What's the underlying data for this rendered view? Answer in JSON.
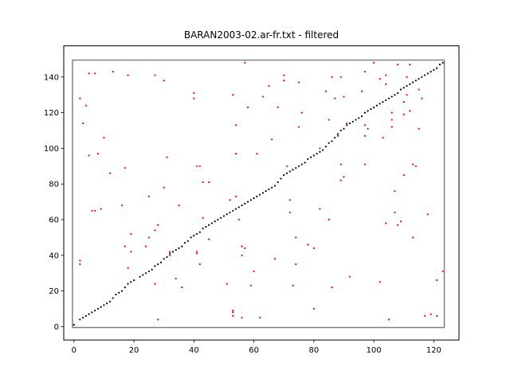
{
  "chart_data": {
    "type": "scatter",
    "title": "BARAN2003-02.ar-fr.txt - filtered",
    "xlabel": "",
    "ylabel": "",
    "xlim": [
      -3.4,
      128.4
    ],
    "ylim": [
      -7.5,
      157.5
    ],
    "x_ticks": [
      0,
      20,
      40,
      60,
      80,
      100,
      120
    ],
    "y_ticks": [
      0,
      20,
      40,
      60,
      80,
      100,
      120,
      140
    ],
    "grid": false,
    "box": {
      "x0": -0.5,
      "y0": -0.5,
      "x1": 123.5,
      "y1": 149.5,
      "color": "#808080"
    },
    "series": [
      {
        "color": "#ff0000",
        "points": [
          [
            2,
            128
          ],
          [
            3,
            114
          ],
          [
            4,
            124
          ],
          [
            5,
            142
          ],
          [
            7,
            142
          ],
          [
            6,
            65
          ],
          [
            7,
            65
          ],
          [
            9,
            66
          ],
          [
            10,
            106
          ],
          [
            8,
            97
          ],
          [
            5,
            96
          ],
          [
            2,
            37
          ],
          [
            2,
            35
          ],
          [
            13,
            143
          ],
          [
            12,
            86
          ],
          [
            18,
            141
          ],
          [
            16,
            68
          ],
          [
            17,
            89
          ],
          [
            17,
            45
          ],
          [
            19,
            52
          ],
          [
            19,
            42
          ],
          [
            18,
            33
          ],
          [
            25,
            73
          ],
          [
            24,
            45
          ],
          [
            25,
            50
          ],
          [
            27,
            141
          ],
          [
            28,
            57
          ],
          [
            27,
            54
          ],
          [
            30,
            138
          ],
          [
            30,
            78
          ],
          [
            31,
            95
          ],
          [
            32,
            42
          ],
          [
            32,
            40
          ],
          [
            34,
            27
          ],
          [
            35,
            68
          ],
          [
            36,
            22
          ],
          [
            40,
            131
          ],
          [
            40,
            128
          ],
          [
            41,
            90
          ],
          [
            41,
            41
          ],
          [
            41,
            42
          ],
          [
            42,
            35
          ],
          [
            42,
            90
          ],
          [
            43,
            81
          ],
          [
            45,
            81
          ],
          [
            43,
            61
          ],
          [
            45,
            49
          ],
          [
            27,
            24
          ],
          [
            28,
            4
          ],
          [
            52,
            71
          ],
          [
            53,
            130
          ],
          [
            54,
            113
          ],
          [
            54,
            97
          ],
          [
            54,
            73
          ],
          [
            55,
            60
          ],
          [
            57,
            148
          ],
          [
            58,
            123
          ],
          [
            56,
            45
          ],
          [
            57,
            44
          ],
          [
            56,
            40
          ],
          [
            59,
            23
          ],
          [
            61,
            97
          ],
          [
            60,
            31
          ],
          [
            62,
            5
          ],
          [
            51,
            24
          ],
          [
            53,
            9
          ],
          [
            53,
            8
          ],
          [
            53,
            6
          ],
          [
            56,
            5
          ],
          [
            63,
            129
          ],
          [
            65,
            135
          ],
          [
            66,
            105
          ],
          [
            67,
            38
          ],
          [
            68,
            123
          ],
          [
            70,
            141
          ],
          [
            70,
            138
          ],
          [
            71,
            90
          ],
          [
            72,
            71
          ],
          [
            72,
            64
          ],
          [
            73,
            23
          ],
          [
            74,
            35
          ],
          [
            74,
            50
          ],
          [
            75,
            137
          ],
          [
            76,
            120
          ],
          [
            75,
            112
          ],
          [
            78,
            46
          ],
          [
            80,
            44
          ],
          [
            80,
            10
          ],
          [
            82,
            100
          ],
          [
            82,
            66
          ],
          [
            84,
            132
          ],
          [
            85,
            116
          ],
          [
            86,
            140
          ],
          [
            87,
            128
          ],
          [
            85,
            60
          ],
          [
            86,
            22
          ],
          [
            88,
            107
          ],
          [
            89,
            140
          ],
          [
            90,
            129
          ],
          [
            89,
            91
          ],
          [
            90,
            84
          ],
          [
            89,
            82
          ],
          [
            91,
            114
          ],
          [
            92,
            28
          ],
          [
            96,
            132
          ],
          [
            97,
            143
          ],
          [
            98,
            111
          ],
          [
            97,
            113
          ],
          [
            97,
            107
          ],
          [
            97,
            91
          ],
          [
            100,
            148
          ],
          [
            102,
            139
          ],
          [
            104,
            136
          ],
          [
            104,
            141
          ],
          [
            103,
            106
          ],
          [
            102,
            25
          ],
          [
            104,
            58
          ],
          [
            105,
            4
          ],
          [
            106,
            120
          ],
          [
            106,
            116
          ],
          [
            106,
            112
          ],
          [
            107,
            76
          ],
          [
            107,
            64
          ],
          [
            108,
            147
          ],
          [
            109,
            59
          ],
          [
            108,
            57
          ],
          [
            110,
            126
          ],
          [
            110,
            119
          ],
          [
            110,
            85
          ],
          [
            112,
            121
          ],
          [
            111,
            140
          ],
          [
            111,
            130
          ],
          [
            112,
            147
          ],
          [
            113,
            91
          ],
          [
            114,
            90
          ],
          [
            113,
            50
          ],
          [
            115,
            133
          ],
          [
            115,
            111
          ],
          [
            116,
            128
          ],
          [
            117,
            6
          ],
          [
            118,
            63
          ],
          [
            119,
            7
          ],
          [
            121,
            26
          ],
          [
            121,
            6
          ],
          [
            122,
            147
          ],
          [
            123,
            31
          ]
        ]
      },
      {
        "color": "#000000",
        "points": [
          [
            0,
            1
          ],
          [
            2,
            4
          ],
          [
            3,
            5
          ],
          [
            4,
            6
          ],
          [
            5,
            7
          ],
          [
            6,
            8
          ],
          [
            7,
            9
          ],
          [
            8,
            10
          ],
          [
            9,
            11
          ],
          [
            10,
            12
          ],
          [
            11,
            13
          ],
          [
            12,
            14
          ],
          [
            13,
            16
          ],
          [
            14,
            18
          ],
          [
            15,
            19
          ],
          [
            16,
            20
          ],
          [
            17,
            22
          ],
          [
            18,
            24
          ],
          [
            19,
            25
          ],
          [
            20,
            26
          ],
          [
            22,
            28
          ],
          [
            23,
            29
          ],
          [
            24,
            30
          ],
          [
            25,
            31
          ],
          [
            26,
            32
          ],
          [
            27,
            34
          ],
          [
            28,
            35
          ],
          [
            29,
            36
          ],
          [
            30,
            38
          ],
          [
            31,
            39
          ],
          [
            32,
            41
          ],
          [
            33,
            42
          ],
          [
            34,
            43
          ],
          [
            35,
            44
          ],
          [
            36,
            45
          ],
          [
            37,
            47
          ],
          [
            38,
            48
          ],
          [
            39,
            50
          ],
          [
            40,
            51
          ],
          [
            41,
            52
          ],
          [
            42,
            53
          ],
          [
            43,
            55
          ],
          [
            44,
            56
          ],
          [
            45,
            57
          ],
          [
            46,
            58
          ],
          [
            47,
            59
          ],
          [
            48,
            60
          ],
          [
            49,
            61
          ],
          [
            50,
            62
          ],
          [
            51,
            63
          ],
          [
            52,
            64
          ],
          [
            53,
            65
          ],
          [
            54,
            66
          ],
          [
            55,
            67
          ],
          [
            56,
            68
          ],
          [
            57,
            69
          ],
          [
            58,
            70
          ],
          [
            59,
            71
          ],
          [
            60,
            72
          ],
          [
            61,
            73
          ],
          [
            62,
            74
          ],
          [
            63,
            75
          ],
          [
            64,
            76
          ],
          [
            65,
            77
          ],
          [
            66,
            78
          ],
          [
            67,
            79
          ],
          [
            68,
            81
          ],
          [
            69,
            83
          ],
          [
            70,
            85
          ],
          [
            71,
            86
          ],
          [
            72,
            87
          ],
          [
            73,
            88
          ],
          [
            74,
            89
          ],
          [
            75,
            90
          ],
          [
            76,
            91
          ],
          [
            77,
            92
          ],
          [
            78,
            94
          ],
          [
            79,
            95
          ],
          [
            80,
            96
          ],
          [
            81,
            97
          ],
          [
            82,
            98
          ],
          [
            83,
            99
          ],
          [
            84,
            101
          ],
          [
            85,
            103
          ],
          [
            86,
            104
          ],
          [
            87,
            106
          ],
          [
            88,
            108
          ],
          [
            89,
            110
          ],
          [
            90,
            111
          ],
          [
            91,
            113
          ],
          [
            92,
            114
          ],
          [
            93,
            115
          ],
          [
            94,
            116
          ],
          [
            95,
            117
          ],
          [
            96,
            118
          ],
          [
            97,
            120
          ],
          [
            98,
            121
          ],
          [
            99,
            122
          ],
          [
            100,
            123
          ],
          [
            101,
            124
          ],
          [
            102,
            125
          ],
          [
            103,
            126
          ],
          [
            104,
            127
          ],
          [
            105,
            128
          ],
          [
            106,
            129
          ],
          [
            107,
            130
          ],
          [
            108,
            131
          ],
          [
            109,
            133
          ],
          [
            110,
            134
          ],
          [
            111,
            135
          ],
          [
            112,
            136
          ],
          [
            113,
            137
          ],
          [
            114,
            138
          ],
          [
            115,
            139
          ],
          [
            116,
            140
          ],
          [
            117,
            141
          ],
          [
            118,
            142
          ],
          [
            119,
            143
          ],
          [
            120,
            144
          ],
          [
            121,
            145
          ],
          [
            122,
            147
          ],
          [
            123,
            148
          ]
        ]
      }
    ]
  }
}
